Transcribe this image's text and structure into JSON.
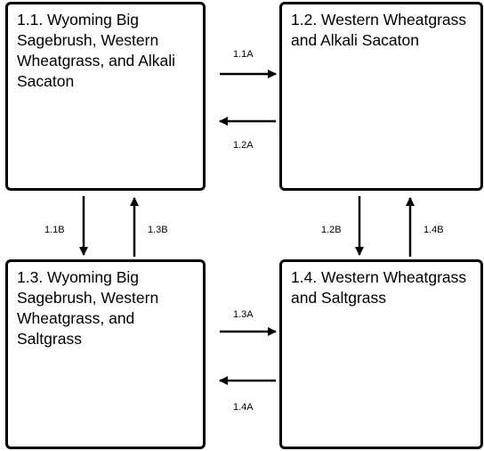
{
  "boxes": {
    "b11": "1.1. Wyoming Big Sagebrush, Western Wheatgrass, and Alkali Sacaton",
    "b12": "1.2. Western Wheatgrass and Alkali Sacaton",
    "b13": "1.3. Wyoming Big Sagebrush, Western Wheatgrass, and Saltgrass",
    "b14": "1.4. Western Wheatgrass and Saltgrass"
  },
  "transitions": {
    "t11a": "1.1A",
    "t12a": "1.2A",
    "t11b": "1.1B",
    "t13b": "1.3B",
    "t12b": "1.2B",
    "t14b": "1.4B",
    "t13a": "1.3A",
    "t14a": "1.4A"
  }
}
